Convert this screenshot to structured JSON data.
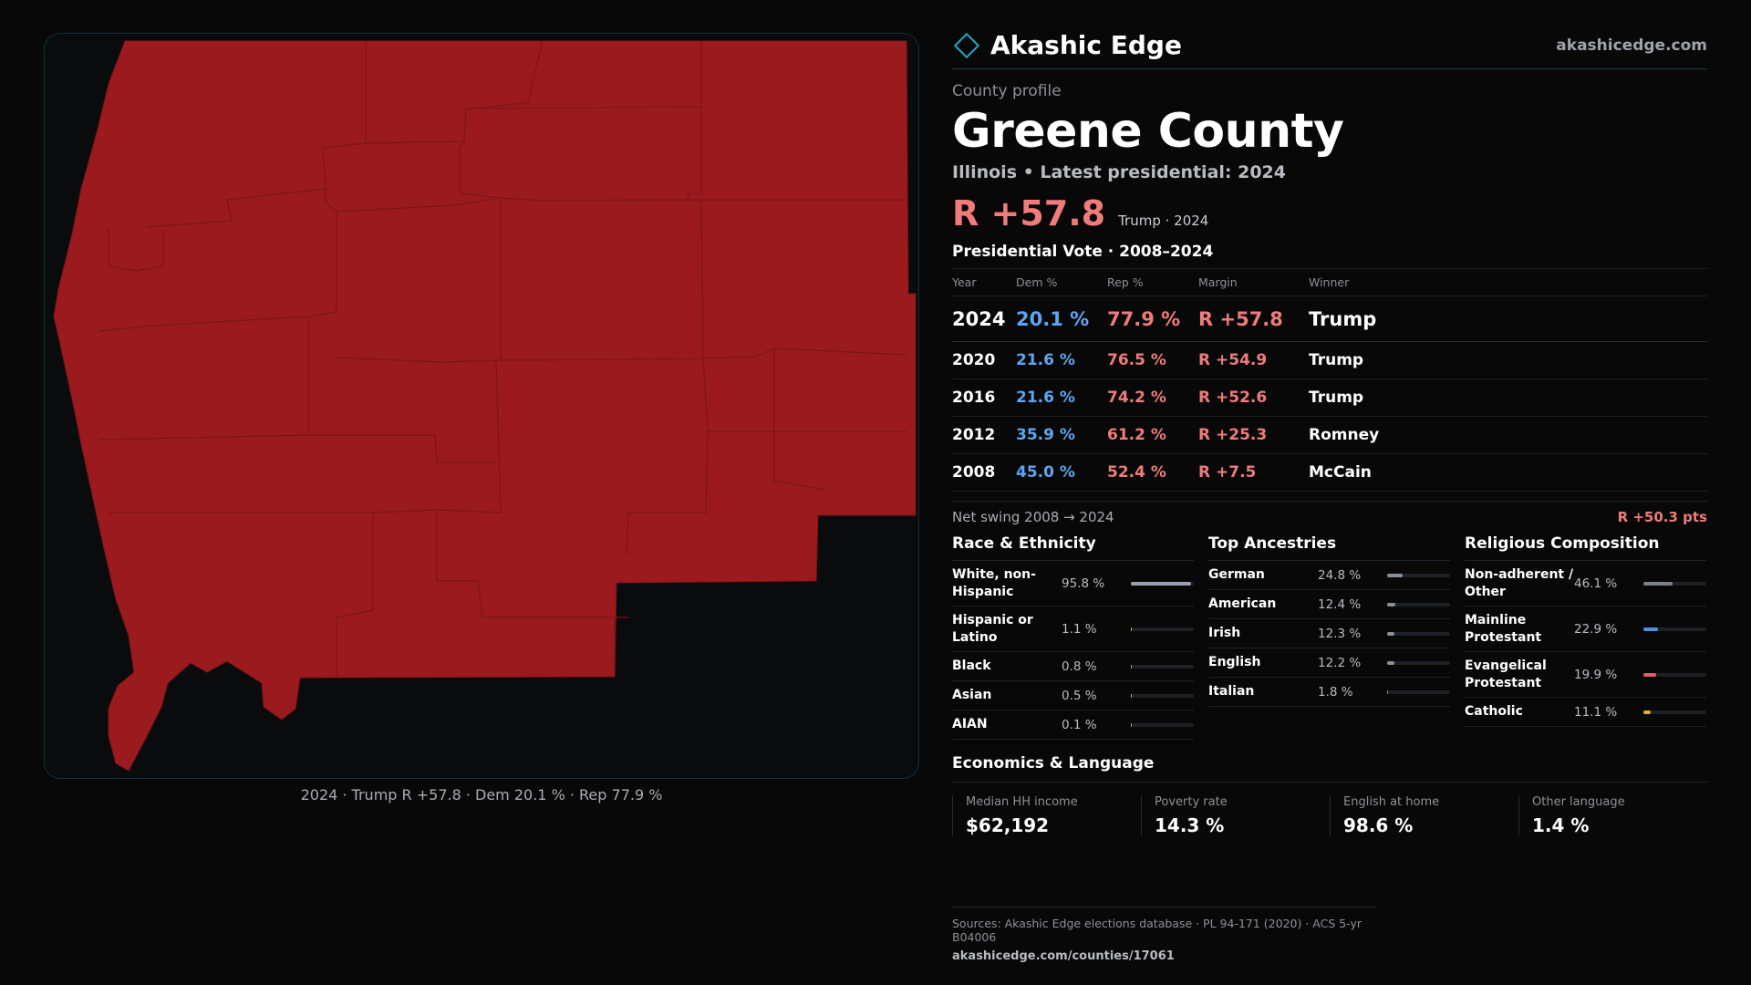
{
  "brand": {
    "name": "Akashic Edge",
    "site": "akashicedge.com",
    "accent": "#28a7c7"
  },
  "profile": {
    "kicker": "County profile",
    "county": "Greene County",
    "subtitle": "Illinois • Latest presidential: 2024",
    "headline_margin": "R +57.8",
    "headline_note": "Trump · 2024"
  },
  "map": {
    "fill_color": "#9b1a1e",
    "caption": "2024 · Trump R +57.8 · Dem 20.1 % · Rep 77.9 %"
  },
  "votes": {
    "title": "Presidential Vote · 2008–2024",
    "headers": {
      "year": "Year",
      "dem": "Dem %",
      "rep": "Rep %",
      "margin": "Margin",
      "winner": "Winner"
    },
    "rows": [
      {
        "year": "2024",
        "dem": "20.1 %",
        "rep": "77.9 %",
        "margin": "R +57.8",
        "winner": "Trump"
      },
      {
        "year": "2020",
        "dem": "21.6 %",
        "rep": "76.5 %",
        "margin": "R +54.9",
        "winner": "Trump"
      },
      {
        "year": "2016",
        "dem": "21.6 %",
        "rep": "74.2 %",
        "margin": "R +52.6",
        "winner": "Trump"
      },
      {
        "year": "2012",
        "dem": "35.9 %",
        "rep": "61.2 %",
        "margin": "R +25.3",
        "winner": "Romney"
      },
      {
        "year": "2008",
        "dem": "45.0 %",
        "rep": "52.4 %",
        "margin": "R +7.5",
        "winner": "McCain"
      }
    ]
  },
  "swing": {
    "label": "Net swing 2008 → 2024",
    "value": "R +50.3 pts"
  },
  "race": {
    "title": "Race & Ethnicity",
    "items": [
      {
        "label": "White, non-Hispanic",
        "value": "95.8 %",
        "fraction": 0.958,
        "color": "#9aa3b2"
      },
      {
        "label": "Hispanic or Latino",
        "value": "1.1 %",
        "fraction": 0.011,
        "color": "#e0a030"
      },
      {
        "label": "Black",
        "value": "0.8 %",
        "fraction": 0.008,
        "color": "#9aa3b2"
      },
      {
        "label": "Asian",
        "value": "0.5 %",
        "fraction": 0.005,
        "color": "#9aa3b2"
      },
      {
        "label": "AIAN",
        "value": "0.1 %",
        "fraction": 0.001,
        "color": "#9aa3b2"
      }
    ]
  },
  "ancestry": {
    "title": "Top Ancestries",
    "items": [
      {
        "label": "German",
        "value": "24.8 %",
        "fraction": 0.248,
        "color": "#8a909a"
      },
      {
        "label": "American",
        "value": "12.4 %",
        "fraction": 0.124,
        "color": "#8a909a"
      },
      {
        "label": "Irish",
        "value": "12.3 %",
        "fraction": 0.123,
        "color": "#8a909a"
      },
      {
        "label": "English",
        "value": "12.2 %",
        "fraction": 0.122,
        "color": "#8a909a"
      },
      {
        "label": "Italian",
        "value": "1.8 %",
        "fraction": 0.018,
        "color": "#8a909a"
      }
    ]
  },
  "religion": {
    "title": "Religious Composition",
    "items": [
      {
        "label": "Non-adherent / Other",
        "value": "46.1 %",
        "fraction": 0.461,
        "color": "#7b818b"
      },
      {
        "label": "Mainline Protestant",
        "value": "22.9 %",
        "fraction": 0.229,
        "color": "#4f8fe0"
      },
      {
        "label": "Evangelical Protestant",
        "value": "19.9 %",
        "fraction": 0.199,
        "color": "#e06060"
      },
      {
        "label": "Catholic",
        "value": "11.1 %",
        "fraction": 0.111,
        "color": "#e0b030"
      }
    ]
  },
  "economics": {
    "title": "Economics & Language",
    "cells": [
      {
        "label": "Median HH income",
        "value": "$62,192"
      },
      {
        "label": "Poverty rate",
        "value": "14.3 %"
      },
      {
        "label": "English at home",
        "value": "98.6 %"
      },
      {
        "label": "Other language",
        "value": "1.4 %"
      }
    ]
  },
  "footer": {
    "sources": "Sources: Akashic Edge elections database · PL 94-171 (2020) · ACS 5-yr B04006",
    "url": "akashicedge.com/counties/17061"
  }
}
